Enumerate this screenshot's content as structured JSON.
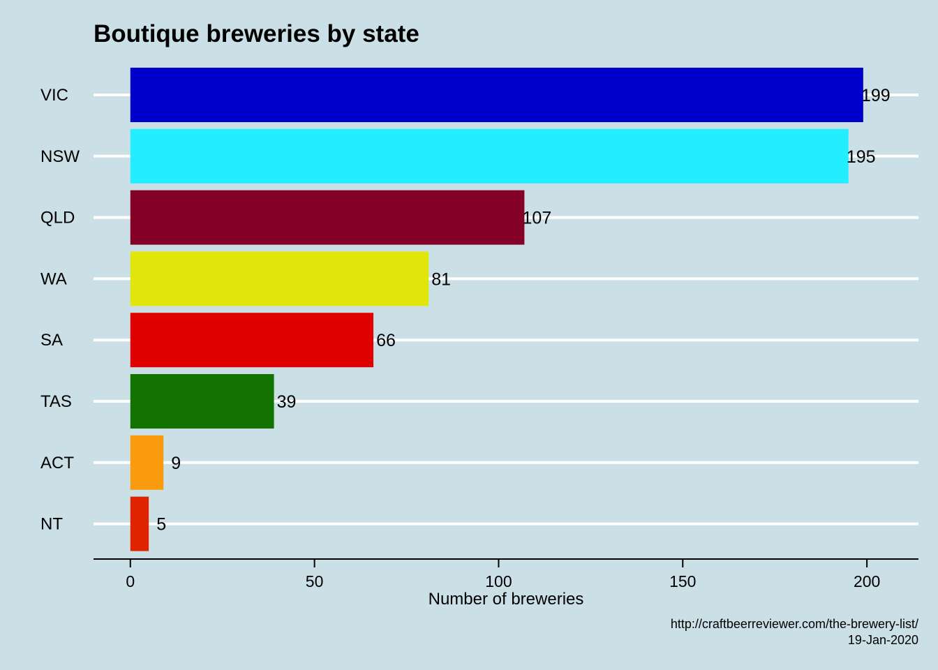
{
  "chart_data": {
    "type": "bar",
    "orientation": "horizontal",
    "title": "Boutique breweries by state",
    "xlabel": "Number of breweries",
    "ylabel": "",
    "categories": [
      "VIC",
      "NSW",
      "QLD",
      "WA",
      "SA",
      "TAS",
      "ACT",
      "NT"
    ],
    "values": [
      199,
      195,
      107,
      81,
      66,
      39,
      9,
      5
    ],
    "colors": [
      "#0000cc",
      "#22eeff",
      "#850026",
      "#e0e60a",
      "#e00000",
      "#127200",
      "#f99b0c",
      "#e12400"
    ],
    "xlim": [
      -10,
      214
    ],
    "xticks": [
      0,
      50,
      100,
      150,
      200
    ],
    "grid": "horizontal-major",
    "background": "#cbdfe6",
    "gridline_color": "#ffffff",
    "data_labels": true,
    "caption": [
      "http://craftbeerreviewer.com/the-brewery-list/",
      "19-Jan-2020"
    ]
  }
}
